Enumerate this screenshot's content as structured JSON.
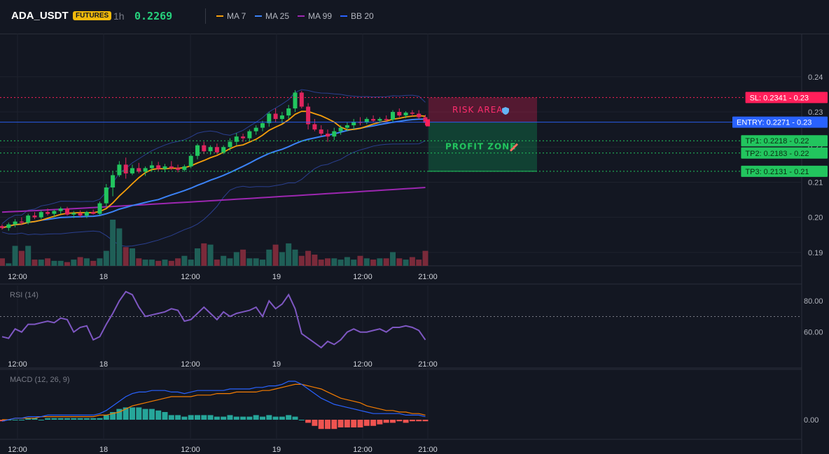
{
  "header": {
    "symbol": "ADA_USDT",
    "badge": "FUTURES",
    "timeframe": "1h",
    "last_price": "0.2269",
    "indicators": [
      {
        "label": "MA 7",
        "color": "#f59e0b"
      },
      {
        "label": "MA 25",
        "color": "#3b82f6"
      },
      {
        "label": "MA 99",
        "color": "#9c27b0"
      },
      {
        "label": "BB 20",
        "color": "#2962ff"
      }
    ]
  },
  "colors": {
    "up": "#22c55e",
    "down": "#e0245e",
    "vol_up": "#1f5f57",
    "vol_down": "#7a2a3a",
    "rsi": "#7e57c2",
    "macd": "#2962ff",
    "signal": "#f57c00",
    "hist_up": "#26a69a",
    "hist_down": "#ef5350"
  },
  "price_axis": {
    "ticks": [
      "0.24",
      "0.23",
      "0.22",
      "0.21",
      "0.20",
      "0.19"
    ]
  },
  "rsi_axis": {
    "ticks": [
      "80.00",
      "60.00"
    ]
  },
  "macd_axis": {
    "ticks": [
      "0.00"
    ]
  },
  "time_axis": {
    "labels": [
      "12:00",
      "18",
      "12:00",
      "19",
      "12:00",
      "21:00"
    ]
  },
  "zones": {
    "risk_label": "RISK AREA",
    "profit_label": "PROFIT ZONE"
  },
  "levels": [
    {
      "name": "sl",
      "text": "SL: 0.2341 - 0.23",
      "color": "#ff1f5a",
      "price": 0.2341
    },
    {
      "name": "entry",
      "text": "ENTRY: 0.2271 - 0.23",
      "color": "#2962ff",
      "price": 0.2271
    },
    {
      "name": "tp1",
      "text": "TP1: 0.2218 - 0.22",
      "color": "#22c55e",
      "price": 0.2218
    },
    {
      "name": "tp2",
      "text": "TP2: 0.2183 - 0.22",
      "color": "#22c55e",
      "price": 0.2183
    },
    {
      "name": "tp3",
      "text": "TP3: 0.2131 - 0.21",
      "color": "#22c55e",
      "price": 0.2131
    }
  ],
  "rsi": {
    "title": "RSI (14)",
    "period": 14
  },
  "macd": {
    "title": "MACD (12, 26, 9)"
  },
  "chart_data": {
    "type": "candlestick",
    "title": "",
    "x_unit": "1h candles",
    "ylim": [
      0.1862,
      0.2523
    ],
    "candles": [
      [
        0.1975,
        0.198,
        0.1965,
        0.197
      ],
      [
        0.197,
        0.1985,
        0.1962,
        0.198
      ],
      [
        0.198,
        0.1995,
        0.1972,
        0.1988
      ],
      [
        0.1988,
        0.2,
        0.1978,
        0.1985
      ],
      [
        0.1985,
        0.201,
        0.198,
        0.2005
      ],
      [
        0.2005,
        0.2015,
        0.1995,
        0.2
      ],
      [
        0.2,
        0.202,
        0.1995,
        0.2015
      ],
      [
        0.2015,
        0.2025,
        0.2005,
        0.201
      ],
      [
        0.201,
        0.2022,
        0.2,
        0.2018
      ],
      [
        0.2018,
        0.203,
        0.201,
        0.2025
      ],
      [
        0.2025,
        0.203,
        0.2005,
        0.2008
      ],
      [
        0.2008,
        0.2018,
        0.1998,
        0.2012
      ],
      [
        0.2012,
        0.202,
        0.2,
        0.2005
      ],
      [
        0.2005,
        0.2018,
        0.1998,
        0.2015
      ],
      [
        0.2015,
        0.2022,
        0.2008,
        0.201
      ],
      [
        0.201,
        0.2045,
        0.2005,
        0.204
      ],
      [
        0.204,
        0.2095,
        0.203,
        0.2085
      ],
      [
        0.2085,
        0.213,
        0.206,
        0.212
      ],
      [
        0.212,
        0.216,
        0.2115,
        0.215
      ],
      [
        0.215,
        0.217,
        0.211,
        0.2125
      ],
      [
        0.2125,
        0.215,
        0.212,
        0.214
      ],
      [
        0.214,
        0.2155,
        0.2125,
        0.213
      ],
      [
        0.213,
        0.2145,
        0.2118,
        0.214
      ],
      [
        0.214,
        0.216,
        0.213,
        0.2148
      ],
      [
        0.2148,
        0.2158,
        0.2132,
        0.2138
      ],
      [
        0.2138,
        0.2152,
        0.2128,
        0.2145
      ],
      [
        0.2145,
        0.216,
        0.2135,
        0.214
      ],
      [
        0.214,
        0.215,
        0.2128,
        0.2135
      ],
      [
        0.2135,
        0.215,
        0.213,
        0.2145
      ],
      [
        0.2145,
        0.218,
        0.214,
        0.2175
      ],
      [
        0.2175,
        0.221,
        0.2165,
        0.2205
      ],
      [
        0.2205,
        0.2215,
        0.218,
        0.2188
      ],
      [
        0.2188,
        0.2205,
        0.2178,
        0.22
      ],
      [
        0.22,
        0.221,
        0.218,
        0.2185
      ],
      [
        0.2185,
        0.2205,
        0.218,
        0.22
      ],
      [
        0.22,
        0.2225,
        0.219,
        0.2215
      ],
      [
        0.2215,
        0.224,
        0.2205,
        0.223
      ],
      [
        0.223,
        0.2238,
        0.2215,
        0.2225
      ],
      [
        0.2225,
        0.225,
        0.2218,
        0.2245
      ],
      [
        0.2245,
        0.2262,
        0.2235,
        0.2255
      ],
      [
        0.2255,
        0.2275,
        0.2245,
        0.2268
      ],
      [
        0.2268,
        0.23,
        0.2258,
        0.2295
      ],
      [
        0.2295,
        0.231,
        0.227,
        0.228
      ],
      [
        0.228,
        0.23,
        0.2268,
        0.229
      ],
      [
        0.229,
        0.232,
        0.228,
        0.231
      ],
      [
        0.231,
        0.2362,
        0.23,
        0.2355
      ],
      [
        0.2355,
        0.236,
        0.231,
        0.2315
      ],
      [
        0.2315,
        0.2325,
        0.225,
        0.2265
      ],
      [
        0.2265,
        0.228,
        0.2245,
        0.225
      ],
      [
        0.225,
        0.2262,
        0.223,
        0.2238
      ],
      [
        0.2238,
        0.225,
        0.2215,
        0.223
      ],
      [
        0.223,
        0.2255,
        0.222,
        0.2245
      ],
      [
        0.2245,
        0.2262,
        0.2235,
        0.2255
      ],
      [
        0.2255,
        0.227,
        0.2245,
        0.2262
      ],
      [
        0.2262,
        0.228,
        0.225,
        0.2272
      ],
      [
        0.2272,
        0.2285,
        0.2262,
        0.227
      ],
      [
        0.227,
        0.2285,
        0.2265,
        0.228
      ],
      [
        0.228,
        0.229,
        0.227,
        0.2275
      ],
      [
        0.2275,
        0.2285,
        0.2268,
        0.228
      ],
      [
        0.228,
        0.229,
        0.227,
        0.2278
      ],
      [
        0.2278,
        0.2305,
        0.227,
        0.23
      ],
      [
        0.23,
        0.231,
        0.2285,
        0.229
      ],
      [
        0.229,
        0.2302,
        0.2282,
        0.2298
      ],
      [
        0.2298,
        0.2305,
        0.2288,
        0.2295
      ],
      [
        0.2295,
        0.2305,
        0.228,
        0.2285
      ],
      [
        0.2285,
        0.2292,
        0.2262,
        0.2269
      ]
    ],
    "volumes": [
      6,
      2,
      16,
      12,
      16,
      5,
      5,
      6,
      4,
      4,
      3,
      5,
      7,
      6,
      4,
      6,
      12,
      37,
      30,
      15,
      14,
      6,
      5,
      5,
      4,
      5,
      4,
      6,
      8,
      5,
      14,
      18,
      17,
      5,
      8,
      6,
      11,
      13,
      6,
      6,
      5,
      13,
      17,
      11,
      18,
      13,
      8,
      12,
      9,
      5,
      6,
      6,
      5,
      7,
      5,
      8,
      6,
      5,
      6,
      6,
      11,
      6,
      5,
      7,
      5,
      12
    ],
    "ma7": {
      "label": "MA 7"
    },
    "ma25": {
      "label": "MA 25"
    },
    "ma99": {
      "label": "MA 99",
      "values_start": 0.2015,
      "values_end": 0.2085
    },
    "bb20": {
      "label": "BB 20"
    },
    "rsi_values": [
      57,
      56,
      62,
      60,
      65,
      65,
      66,
      67,
      66,
      69,
      68,
      60,
      63,
      64,
      55,
      57,
      65,
      72,
      80,
      86,
      84,
      76,
      70,
      71,
      72,
      73,
      75,
      74,
      67,
      68,
      72,
      76,
      72,
      68,
      73,
      70,
      72,
      73,
      74,
      76,
      70,
      80,
      75,
      78,
      84,
      75,
      59,
      56,
      53,
      50,
      54,
      52,
      55,
      60,
      62,
      60,
      60,
      61,
      62,
      60,
      63,
      63,
      64,
      63,
      61,
      55
    ],
    "macd_values": [
      -0.0001,
      0.0,
      0.0001,
      0.0001,
      0.0002,
      0.0002,
      0.0002,
      0.0003,
      0.0003,
      0.0003,
      0.0003,
      0.0003,
      0.0003,
      0.0003,
      0.0003,
      0.0004,
      0.0006,
      0.0009,
      0.0012,
      0.0015,
      0.0017,
      0.0018,
      0.0018,
      0.0019,
      0.0019,
      0.0019,
      0.0018,
      0.0018,
      0.0017,
      0.0018,
      0.0019,
      0.0019,
      0.0019,
      0.0019,
      0.0019,
      0.002,
      0.002,
      0.002,
      0.002,
      0.0021,
      0.0021,
      0.0022,
      0.0022,
      0.0023,
      0.0025,
      0.0025,
      0.0023,
      0.002,
      0.0017,
      0.0014,
      0.0012,
      0.001,
      0.0009,
      0.0008,
      0.0007,
      0.0006,
      0.0005,
      0.0004,
      0.0004,
      0.0004,
      0.0004,
      0.0004,
      0.0003,
      0.0003,
      0.0003,
      0.0002
    ],
    "signal_values": [
      0.0,
      0.0,
      0.0001,
      0.0001,
      0.0001,
      0.0001,
      0.0002,
      0.0002,
      0.0002,
      0.0002,
      0.0002,
      0.0002,
      0.0002,
      0.0002,
      0.0002,
      0.0003,
      0.0003,
      0.0004,
      0.0005,
      0.0007,
      0.0009,
      0.001,
      0.0011,
      0.0012,
      0.0013,
      0.0014,
      0.0015,
      0.0015,
      0.0015,
      0.0015,
      0.0016,
      0.0016,
      0.0016,
      0.0017,
      0.0017,
      0.0017,
      0.0018,
      0.0018,
      0.0018,
      0.0018,
      0.0019,
      0.0019,
      0.002,
      0.0021,
      0.0022,
      0.0023,
      0.0023,
      0.0022,
      0.0021,
      0.002,
      0.0018,
      0.0016,
      0.0014,
      0.0013,
      0.0012,
      0.0011,
      0.0009,
      0.0008,
      0.0007,
      0.0006,
      0.0006,
      0.0005,
      0.0005,
      0.0004,
      0.0004,
      0.0003
    ]
  }
}
